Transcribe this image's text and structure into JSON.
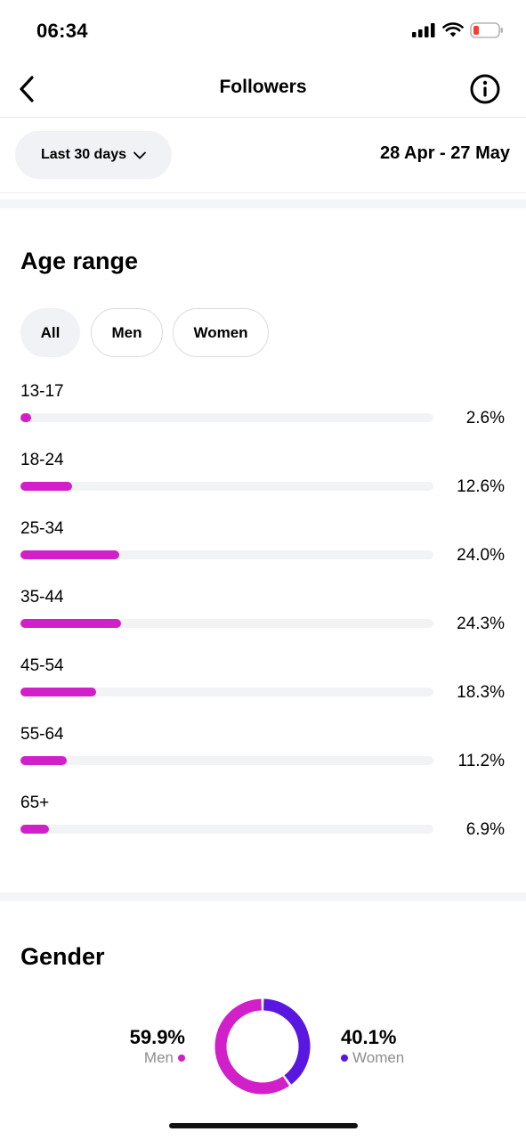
{
  "status_bar": {
    "time": "06:34"
  },
  "nav": {
    "title": "Followers"
  },
  "date_range": {
    "selector_label": "Last 30 days",
    "dates": "28 Apr - 27 May"
  },
  "age_range": {
    "title": "Age range",
    "filters": [
      "All",
      "Men",
      "Women"
    ],
    "selected_filter": "All",
    "rows": [
      {
        "label": "13-17",
        "value": "2.6%",
        "percent": 2.6
      },
      {
        "label": "18-24",
        "value": "12.6%",
        "percent": 12.6
      },
      {
        "label": "25-34",
        "value": "24.0%",
        "percent": 24.0
      },
      {
        "label": "35-44",
        "value": "24.3%",
        "percent": 24.3
      },
      {
        "label": "45-54",
        "value": "18.3%",
        "percent": 18.3
      },
      {
        "label": "55-64",
        "value": "11.2%",
        "percent": 11.2
      },
      {
        "label": "65+",
        "value": "6.9%",
        "percent": 6.9
      }
    ],
    "bar_color": "#d11fc9"
  },
  "gender": {
    "title": "Gender",
    "men": {
      "percent": "59.9%",
      "label": "Men",
      "value": 59.9,
      "color": "#d11fc9"
    },
    "women": {
      "percent": "40.1%",
      "label": "Women",
      "value": 40.1,
      "color": "#5a17e0"
    }
  }
}
